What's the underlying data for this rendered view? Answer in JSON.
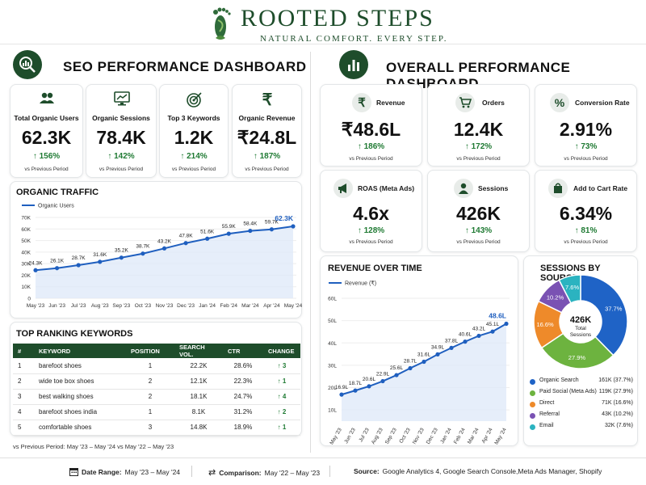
{
  "brand": {
    "name": "ROOTED STEPS",
    "tagline": "NATURAL COMFORT. EVERY STEP."
  },
  "seo": {
    "title": "SEO PERFORMANCE DASHBOARD",
    "kpis": [
      {
        "icon": "users-icon",
        "label": "Total Organic Users",
        "value": "62.3K",
        "change": "↑ 156%",
        "sub": "vs Previous Period"
      },
      {
        "icon": "monitor-chart-icon",
        "label": "Organic Sessions",
        "value": "78.4K",
        "change": "↑ 142%",
        "sub": "vs Previous Period"
      },
      {
        "icon": "target-icon",
        "label": "Top 3 Keywords",
        "value": "1.2K",
        "change": "↑ 214%",
        "sub": "vs Previous Period"
      },
      {
        "icon": "rupee-icon",
        "label": "Organic Revenue",
        "value": "₹24.8L",
        "change": "↑ 187%",
        "sub": "vs Previous Period"
      }
    ],
    "traffic_title": "ORGANIC TRAFFIC",
    "keywords_title": "TOP RANKING KEYWORDS",
    "keywords_headers": [
      "#",
      "KEYWORD",
      "POSITION",
      "SEARCH VOL.",
      "CTR",
      "CHANGE"
    ],
    "keywords": [
      {
        "rank": "1",
        "keyword": "barefoot shoes",
        "position": "1",
        "volume": "22.2K",
        "ctr": "28.6%",
        "change": "↑ 3"
      },
      {
        "rank": "2",
        "keyword": "wide toe box shoes",
        "position": "2",
        "volume": "12.1K",
        "ctr": "22.3%",
        "change": "↑ 1"
      },
      {
        "rank": "3",
        "keyword": "best walking shoes",
        "position": "2",
        "volume": "18.1K",
        "ctr": "24.7%",
        "change": "↑ 4"
      },
      {
        "rank": "4",
        "keyword": "barefoot shoes india",
        "position": "1",
        "volume": "8.1K",
        "ctr": "31.2%",
        "change": "↑ 2"
      },
      {
        "rank": "5",
        "keyword": "comfortable shoes",
        "position": "3",
        "volume": "14.8K",
        "ctr": "18.9%",
        "change": "↑ 1"
      }
    ],
    "comparison_note": "vs Previous Period: May '23 – May '24 vs May '22 – May '23"
  },
  "overall": {
    "title": "OVERALL PERFORMANCE DASHBOARD",
    "kpis": [
      {
        "icon": "rupee-icon",
        "label": "Revenue",
        "value": "₹48.6L",
        "change": "↑ 186%",
        "sub": "vs Previous Period"
      },
      {
        "icon": "cart-icon",
        "label": "Orders",
        "value": "12.4K",
        "change": "↑ 172%",
        "sub": "vs Previous Period"
      },
      {
        "icon": "percent-icon",
        "label": "Conversion Rate",
        "value": "2.91%",
        "change": "↑ 73%",
        "sub": "vs Previous Period"
      },
      {
        "icon": "megaphone-icon",
        "label": "ROAS (Meta Ads)",
        "value": "4.6x",
        "change": "↑ 128%",
        "sub": "vs Previous Period"
      },
      {
        "icon": "user-icon",
        "label": "Sessions",
        "value": "426K",
        "change": "↑ 143%",
        "sub": "vs Previous Period"
      },
      {
        "icon": "bag-icon",
        "label": "Add to Cart Rate",
        "value": "6.34%",
        "change": "↑ 81%",
        "sub": "vs Previous Period"
      }
    ],
    "revenue_title": "REVENUE OVER TIME",
    "sessions_title": "SESSIONS BY SOURCE"
  },
  "footer": {
    "date_label": "Date Range:",
    "date_value": "May '23 – May '24",
    "comparison_label": "Comparison:",
    "comparison_value": "May '22 – May '23",
    "source_label": "Source:",
    "source_value": "Google Analytics 4, Google Search Console,Meta Ads Manager, Shopify"
  },
  "chart_data": [
    {
      "type": "line",
      "title": "ORGANIC TRAFFIC",
      "series": [
        {
          "name": "Organic Users",
          "values": [
            24.3,
            26.1,
            28.7,
            31.6,
            35.2,
            38.7,
            43.2,
            47.8,
            51.6,
            55.9,
            58.4,
            59.7,
            62.3
          ]
        }
      ],
      "x": [
        "May '23",
        "Jun '23",
        "Jul '23",
        "Aug '23",
        "Sep '23",
        "Oct '23",
        "Nov '23",
        "Dec '23",
        "Jan '24",
        "Feb '24",
        "Mar '24",
        "Apr '24",
        "May '24"
      ],
      "data_labels": [
        "24.3K",
        "26.1K",
        "28.7K",
        "31.6K",
        "35.2K",
        "38.7K",
        "43.2K",
        "47.8K",
        "51.6K",
        "55.9K",
        "58.4K",
        "59.7K",
        "62.3K"
      ],
      "yticks": [
        "0",
        "10K",
        "20K",
        "30K",
        "40K",
        "50K",
        "60K",
        "70K"
      ],
      "ylim": [
        0,
        70
      ],
      "color": "#1f5fbf",
      "legend": "top-left"
    },
    {
      "type": "line",
      "title": "REVENUE OVER TIME",
      "series": [
        {
          "name": "Revenue (₹)",
          "values": [
            16.9,
            18.7,
            20.6,
            22.9,
            25.6,
            28.7,
            31.6,
            34.9,
            37.8,
            40.6,
            43.2,
            45.1,
            48.6
          ]
        }
      ],
      "x": [
        "May '23",
        "Jun '23",
        "Jul '23",
        "Aug '23",
        "Sep '23",
        "Oct '23",
        "Nov '23",
        "Dec '23",
        "Jan '24",
        "Feb '24",
        "Mar '24",
        "Apr '24",
        "May '24"
      ],
      "data_labels": [
        "16.9L",
        "18.7L",
        "20.6L",
        "22.9L",
        "25.6L",
        "28.7L",
        "31.6L",
        "34.9L",
        "37.8L",
        "40.6L",
        "43.2L",
        "45.1L",
        "48.6L"
      ],
      "yticks": [
        "10L",
        "20L",
        "30L",
        "40L",
        "50L",
        "60L"
      ],
      "ylim": [
        5,
        60
      ],
      "color": "#1f5fbf",
      "legend": "top-left"
    },
    {
      "type": "pie",
      "title": "SESSIONS BY SOURCE",
      "center_value": "426K",
      "center_label": "Total Sessions",
      "slices": [
        {
          "name": "Organic Search",
          "value": 37.7,
          "label": "37.7%",
          "detail": "161K (37.7%)",
          "color": "#1f63c6"
        },
        {
          "name": "Paid Social (Meta Ads)",
          "value": 27.9,
          "label": "27.9%",
          "detail": "119K (27.9%)",
          "color": "#6db33f"
        },
        {
          "name": "Direct",
          "value": 16.6,
          "label": "16.6%",
          "detail": "71K (16.6%)",
          "color": "#ee8a2a"
        },
        {
          "name": "Referral",
          "value": 10.2,
          "label": "10.2%",
          "detail": "43K (10.2%)",
          "color": "#7a52b3"
        },
        {
          "name": "Email",
          "value": 7.6,
          "label": "7.6%",
          "detail": "32K (7.6%)",
          "color": "#2bb3c0"
        }
      ]
    }
  ]
}
